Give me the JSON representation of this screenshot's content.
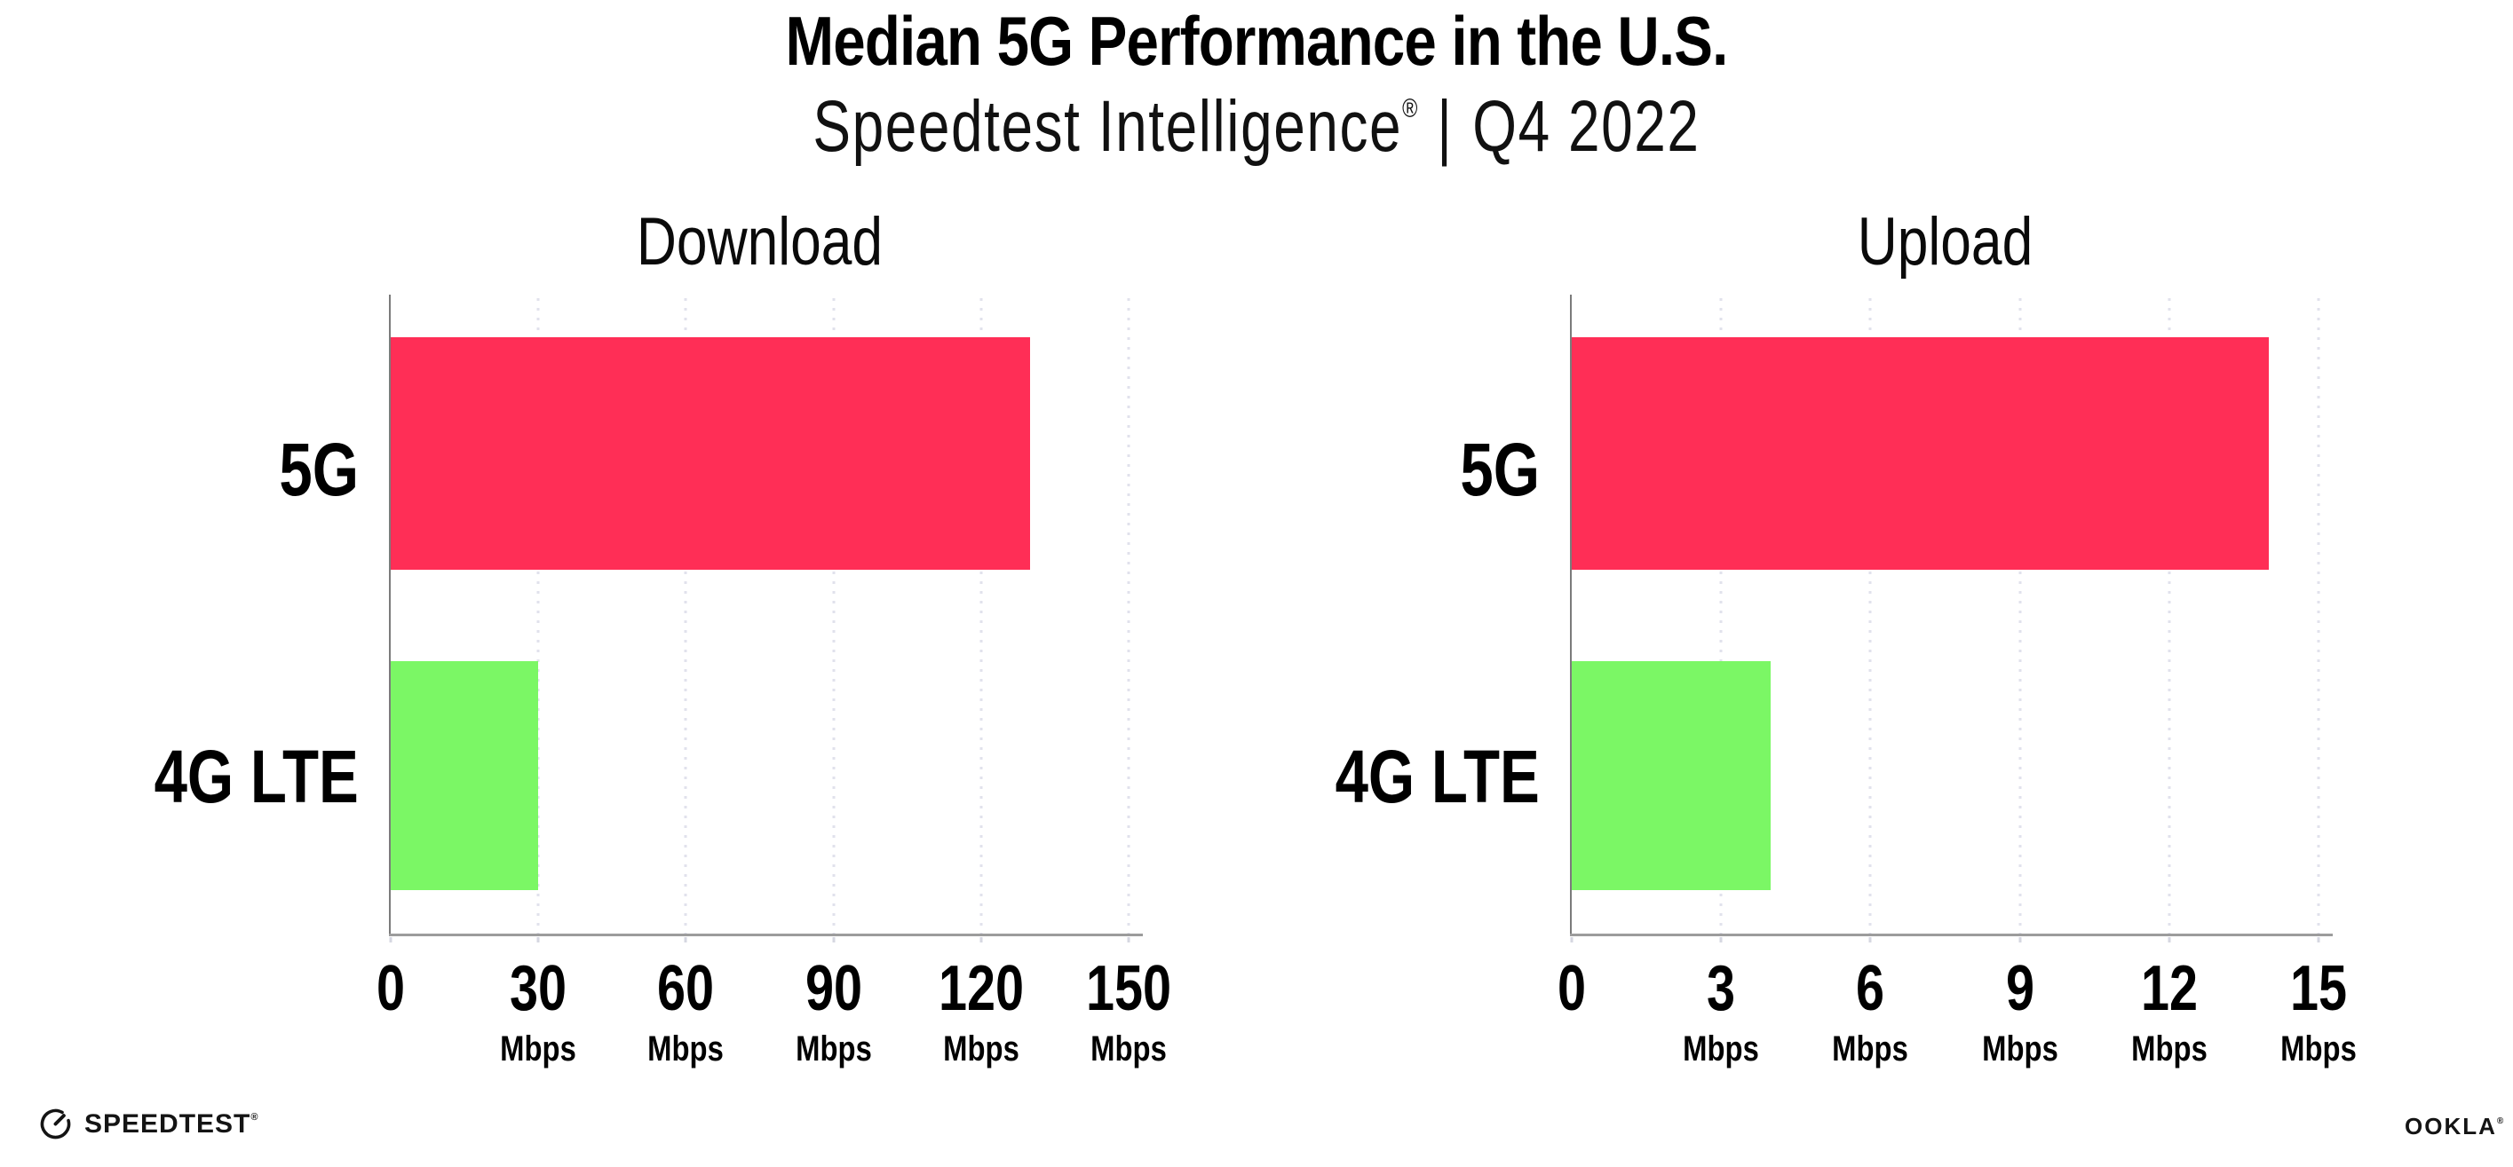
{
  "header": {
    "title": "Median 5G Performance in the U.S.",
    "subtitle_brand": "Speedtest Intelligence",
    "subtitle_reg": "®",
    "subtitle_divider": "|",
    "subtitle_period": "Q4 2022"
  },
  "chart_data": [
    {
      "type": "bar",
      "orientation": "horizontal",
      "title": "Download",
      "categories": [
        "5G",
        "4G LTE"
      ],
      "values": [
        130,
        30
      ],
      "unit": "Mbps",
      "xlabel": "",
      "ylabel": "",
      "xlim": [
        0,
        150
      ],
      "ticks": [
        0,
        30,
        60,
        90,
        120,
        150
      ],
      "bar_colors": [
        "#FF2E56",
        "#7BF765"
      ],
      "grid": "vertical-dotted",
      "legend": "none"
    },
    {
      "type": "bar",
      "orientation": "horizontal",
      "title": "Upload",
      "categories": [
        "5G",
        "4G LTE"
      ],
      "values": [
        14,
        4
      ],
      "unit": "Mbps",
      "xlabel": "",
      "ylabel": "",
      "xlim": [
        0,
        15
      ],
      "ticks": [
        0,
        3,
        6,
        9,
        12,
        15
      ],
      "bar_colors": [
        "#FF2E56",
        "#7BF765"
      ],
      "grid": "vertical-dotted",
      "legend": "none"
    }
  ],
  "colors": {
    "bar_5g": "#FF2E56",
    "bar_4g_lte": "#7BF765",
    "gridline": "#E1E2EC",
    "axis_line": "#9C9C9C",
    "text": "#000000",
    "logo": "#141414"
  },
  "footer": {
    "speedtest_wordmark": "SPEEDTEST",
    "speedtest_reg": "®",
    "ookla_wordmark": "OOKLA",
    "ookla_reg": "®"
  }
}
